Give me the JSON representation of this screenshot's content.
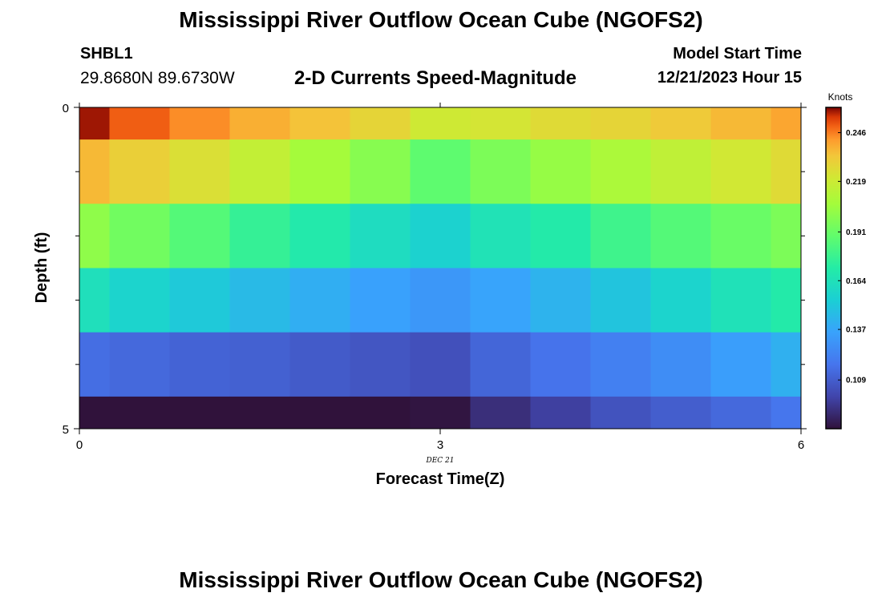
{
  "header": {
    "title": "Mississippi River Outflow Ocean Cube (NGOFS2)",
    "station": "SHBL1",
    "coords": "29.8680N  89.6730W",
    "plot_title": "2-D Currents Speed-Magnitude",
    "model_start_label": "Model Start Time",
    "model_start_value": "12/21/2023 Hour 15"
  },
  "footer": {
    "title": "Mississippi River Outflow Ocean Cube (NGOFS2)"
  },
  "chart_data": {
    "type": "heatmap",
    "title": "2-D Currents Speed-Magnitude",
    "xlabel": "Forecast Time(Z)",
    "ylabel": "Depth (ft)",
    "xlim": [
      0,
      6
    ],
    "ylim": [
      0,
      5
    ],
    "x_ticks": [
      "0",
      "3",
      "6"
    ],
    "y_ticks": [
      "0",
      "5"
    ],
    "date_label": "DEC 21",
    "colorbar": {
      "label": "Knots",
      "ticks": [
        "0.246",
        "0.219",
        "0.191",
        "0.164",
        "0.137",
        "0.109"
      ],
      "tick_values": [
        0.246,
        0.219,
        0.191,
        0.164,
        0.137,
        0.109
      ],
      "range": [
        0.082,
        0.26
      ]
    },
    "x_centers": [
      0,
      0.5,
      1,
      1.5,
      2,
      2.5,
      3,
      3.5,
      4,
      4.5,
      5,
      5.5,
      6
    ],
    "y_centers": [
      0,
      1,
      2,
      3,
      4,
      5
    ],
    "values": [
      [
        0.258,
        0.25,
        0.244,
        0.238,
        0.234,
        0.228,
        0.22,
        0.222,
        0.226,
        0.228,
        0.232,
        0.236,
        0.24
      ],
      [
        0.236,
        0.23,
        0.224,
        0.216,
        0.207,
        0.199,
        0.188,
        0.196,
        0.203,
        0.209,
        0.215,
        0.221,
        0.226
      ],
      [
        0.201,
        0.193,
        0.185,
        0.176,
        0.169,
        0.161,
        0.155,
        0.165,
        0.17,
        0.179,
        0.185,
        0.191,
        0.196
      ],
      [
        0.163,
        0.156,
        0.151,
        0.145,
        0.14,
        0.135,
        0.131,
        0.136,
        0.142,
        0.149,
        0.156,
        0.164,
        0.17
      ],
      [
        0.115,
        0.113,
        0.111,
        0.11,
        0.108,
        0.106,
        0.104,
        0.112,
        0.117,
        0.122,
        0.127,
        0.134,
        0.141
      ],
      [
        0.082,
        0.082,
        0.082,
        0.082,
        0.082,
        0.082,
        0.083,
        0.092,
        0.098,
        0.105,
        0.109,
        0.113,
        0.118
      ]
    ]
  }
}
